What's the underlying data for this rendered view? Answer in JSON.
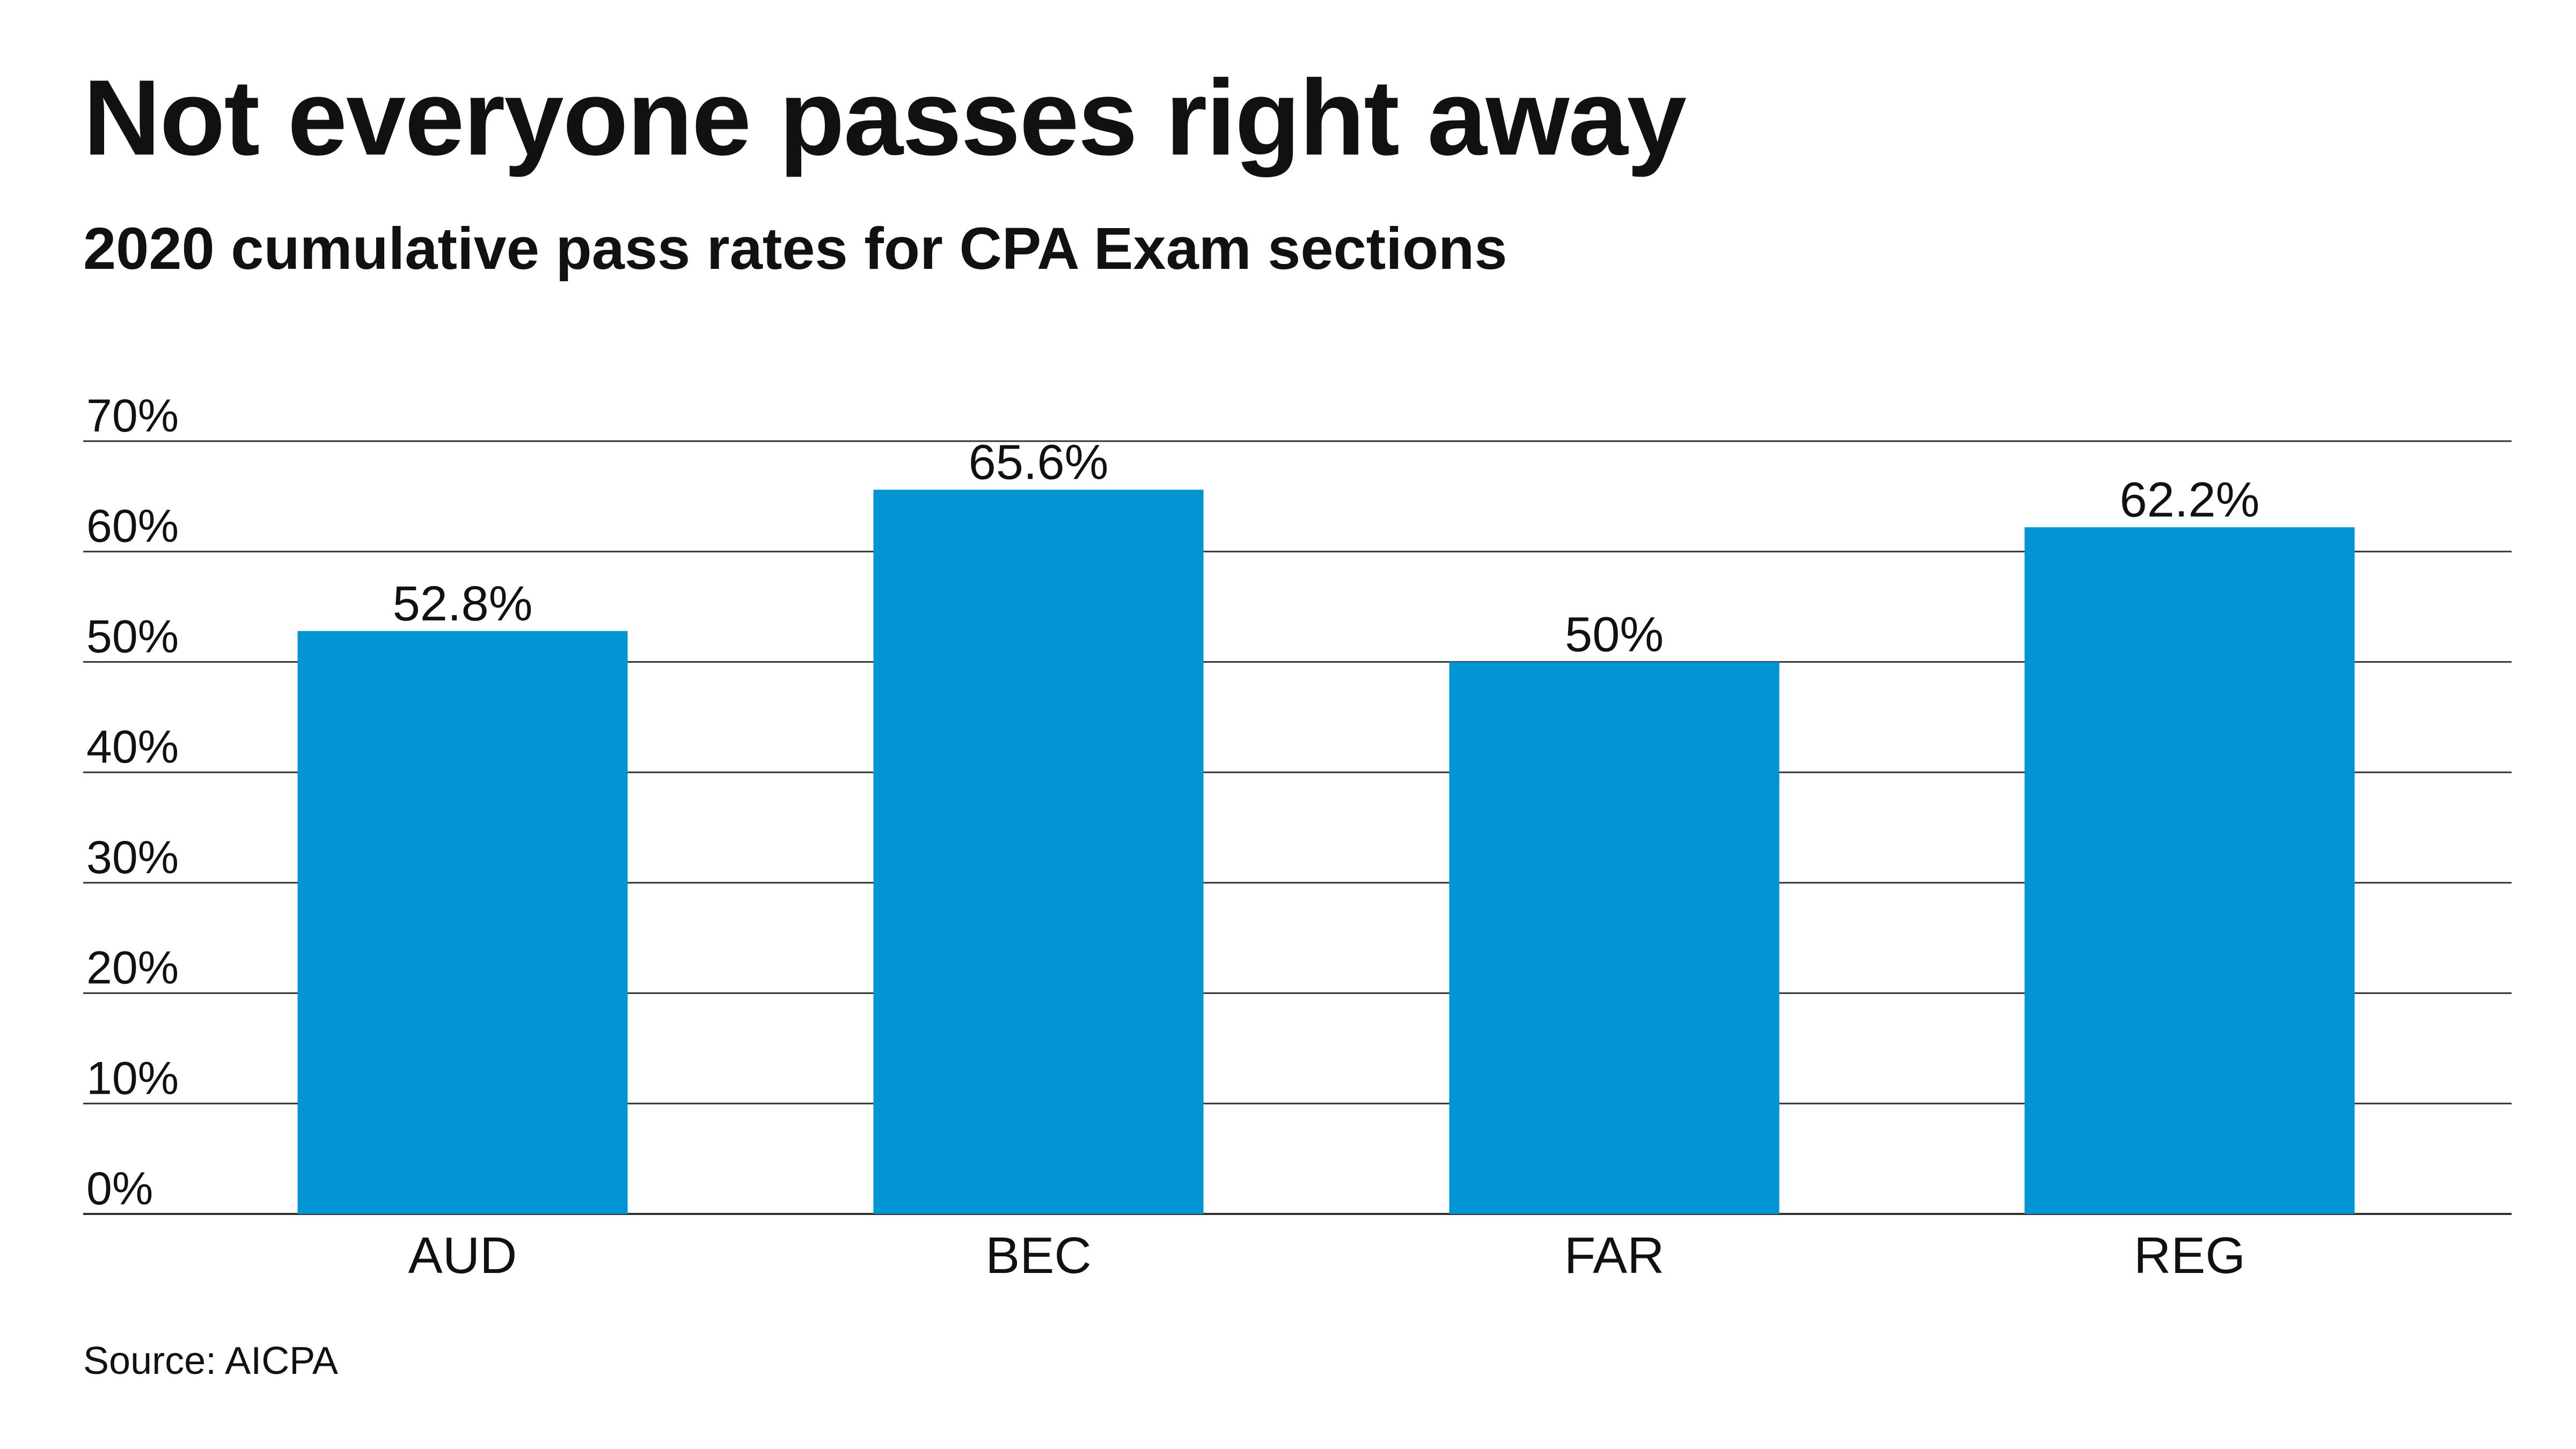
{
  "header": {
    "title": "Not everyone passes right away",
    "subtitle": "2020 cumulative pass rates for CPA Exam sections"
  },
  "footer": {
    "source": "Source: AICPA"
  },
  "colors": {
    "bar": "#0295d3",
    "gridline": "#333333",
    "text": "#111111"
  },
  "chart_data": {
    "type": "bar",
    "title": "Not everyone passes right away",
    "subtitle": "2020 cumulative pass rates for CPA Exam sections",
    "categories": [
      "AUD",
      "BEC",
      "FAR",
      "REG"
    ],
    "values": [
      52.8,
      65.6,
      50,
      62.2
    ],
    "data_labels": [
      "52.8%",
      "65.6%",
      "50%",
      "62.2%"
    ],
    "xlabel": "",
    "ylabel": "",
    "ylim": [
      0,
      70
    ],
    "yticks": [
      0,
      10,
      20,
      30,
      40,
      50,
      60,
      70
    ],
    "ytick_labels": [
      "0%",
      "10%",
      "20%",
      "30%",
      "40%",
      "50%",
      "60%",
      "70%"
    ],
    "grid": true,
    "legend": "none"
  }
}
